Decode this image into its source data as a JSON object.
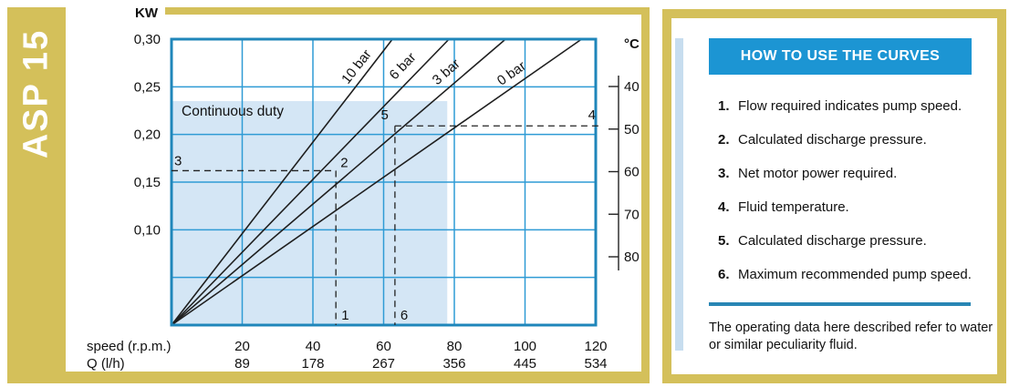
{
  "model": "ASP 15",
  "colors": {
    "gold": "#d4c05a",
    "header_blue": "#1c95d3",
    "grid_blue": "#2f9bd5",
    "plot_border_blue": "#1f86ba",
    "shade_blue": "#d4e6f5",
    "accent_light_blue": "#c7ddef",
    "divider_blue": "#2886b4",
    "line_dark": "#1f1f1f"
  },
  "right_panel": {
    "title": "HOW TO USE THE CURVES",
    "steps": [
      {
        "n": "1.",
        "text": "Flow required indicates pump speed."
      },
      {
        "n": "2.",
        "text": "Calculated discharge pressure."
      },
      {
        "n": "3.",
        "text": "Net motor power required."
      },
      {
        "n": "4.",
        "text": "Fluid temperature."
      },
      {
        "n": "5.",
        "text": "Calculated discharge pressure."
      },
      {
        "n": "6.",
        "text": "Maximum recommended pump speed."
      }
    ],
    "note": "The operating data here described refer to water or similar peculiarity fluid."
  },
  "chart_data": {
    "type": "line",
    "title": "ASP 15 pump performance curves",
    "ylabel": "KW",
    "xlim": [
      0,
      120
    ],
    "ylim": [
      0,
      0.3
    ],
    "grid": true,
    "grid_step_x": 20,
    "grid_step_y": 0.05,
    "y_ticks": [
      "0,30",
      "0,25",
      "0,20",
      "0,15",
      "0,10"
    ],
    "x_axis_rows": [
      {
        "label": "speed (r.p.m.)",
        "ticks": [
          "20",
          "40",
          "60",
          "80",
          "100",
          "120"
        ]
      },
      {
        "label": "Q (l/h)",
        "ticks": [
          "89",
          "178",
          "267",
          "356",
          "445",
          "534"
        ]
      }
    ],
    "right_axis": {
      "unit": "°C",
      "ticks": [
        40,
        50,
        60,
        70,
        80
      ]
    },
    "series": [
      {
        "name": "10 bar",
        "points": [
          [
            0,
            0
          ],
          [
            62.5,
            0.3
          ]
        ],
        "label_at": [
          53.9,
          0.2665
        ],
        "label_angle": -52
      },
      {
        "name": "6 bar",
        "points": [
          [
            0,
            0
          ],
          [
            78.5,
            0.3
          ]
        ],
        "label_at": [
          66.8,
          0.2665
        ],
        "label_angle": -46
      },
      {
        "name": "3 bar",
        "points": [
          [
            0,
            0
          ],
          [
            94.5,
            0.3
          ]
        ],
        "label_at": [
          79.0,
          0.26
        ],
        "label_angle": -41
      },
      {
        "name": "0 bar",
        "points": [
          [
            0,
            0
          ],
          [
            116,
            0.3
          ]
        ],
        "label_at": [
          97.3,
          0.258
        ],
        "label_angle": -35
      }
    ],
    "continuous_duty": {
      "label": "Continuous duty",
      "rpm_max": 78,
      "kw_max": 0.235
    },
    "guides": [
      {
        "rpm": 46.5,
        "kw": 0.162,
        "bottom_label": "1",
        "corner_label": "2",
        "axis_label": "3",
        "axis_side": "left"
      },
      {
        "rpm": 63.2,
        "kw": 0.209,
        "bottom_label": "6",
        "corner_label": "5",
        "axis_label": "4",
        "axis_side": "right"
      }
    ]
  }
}
